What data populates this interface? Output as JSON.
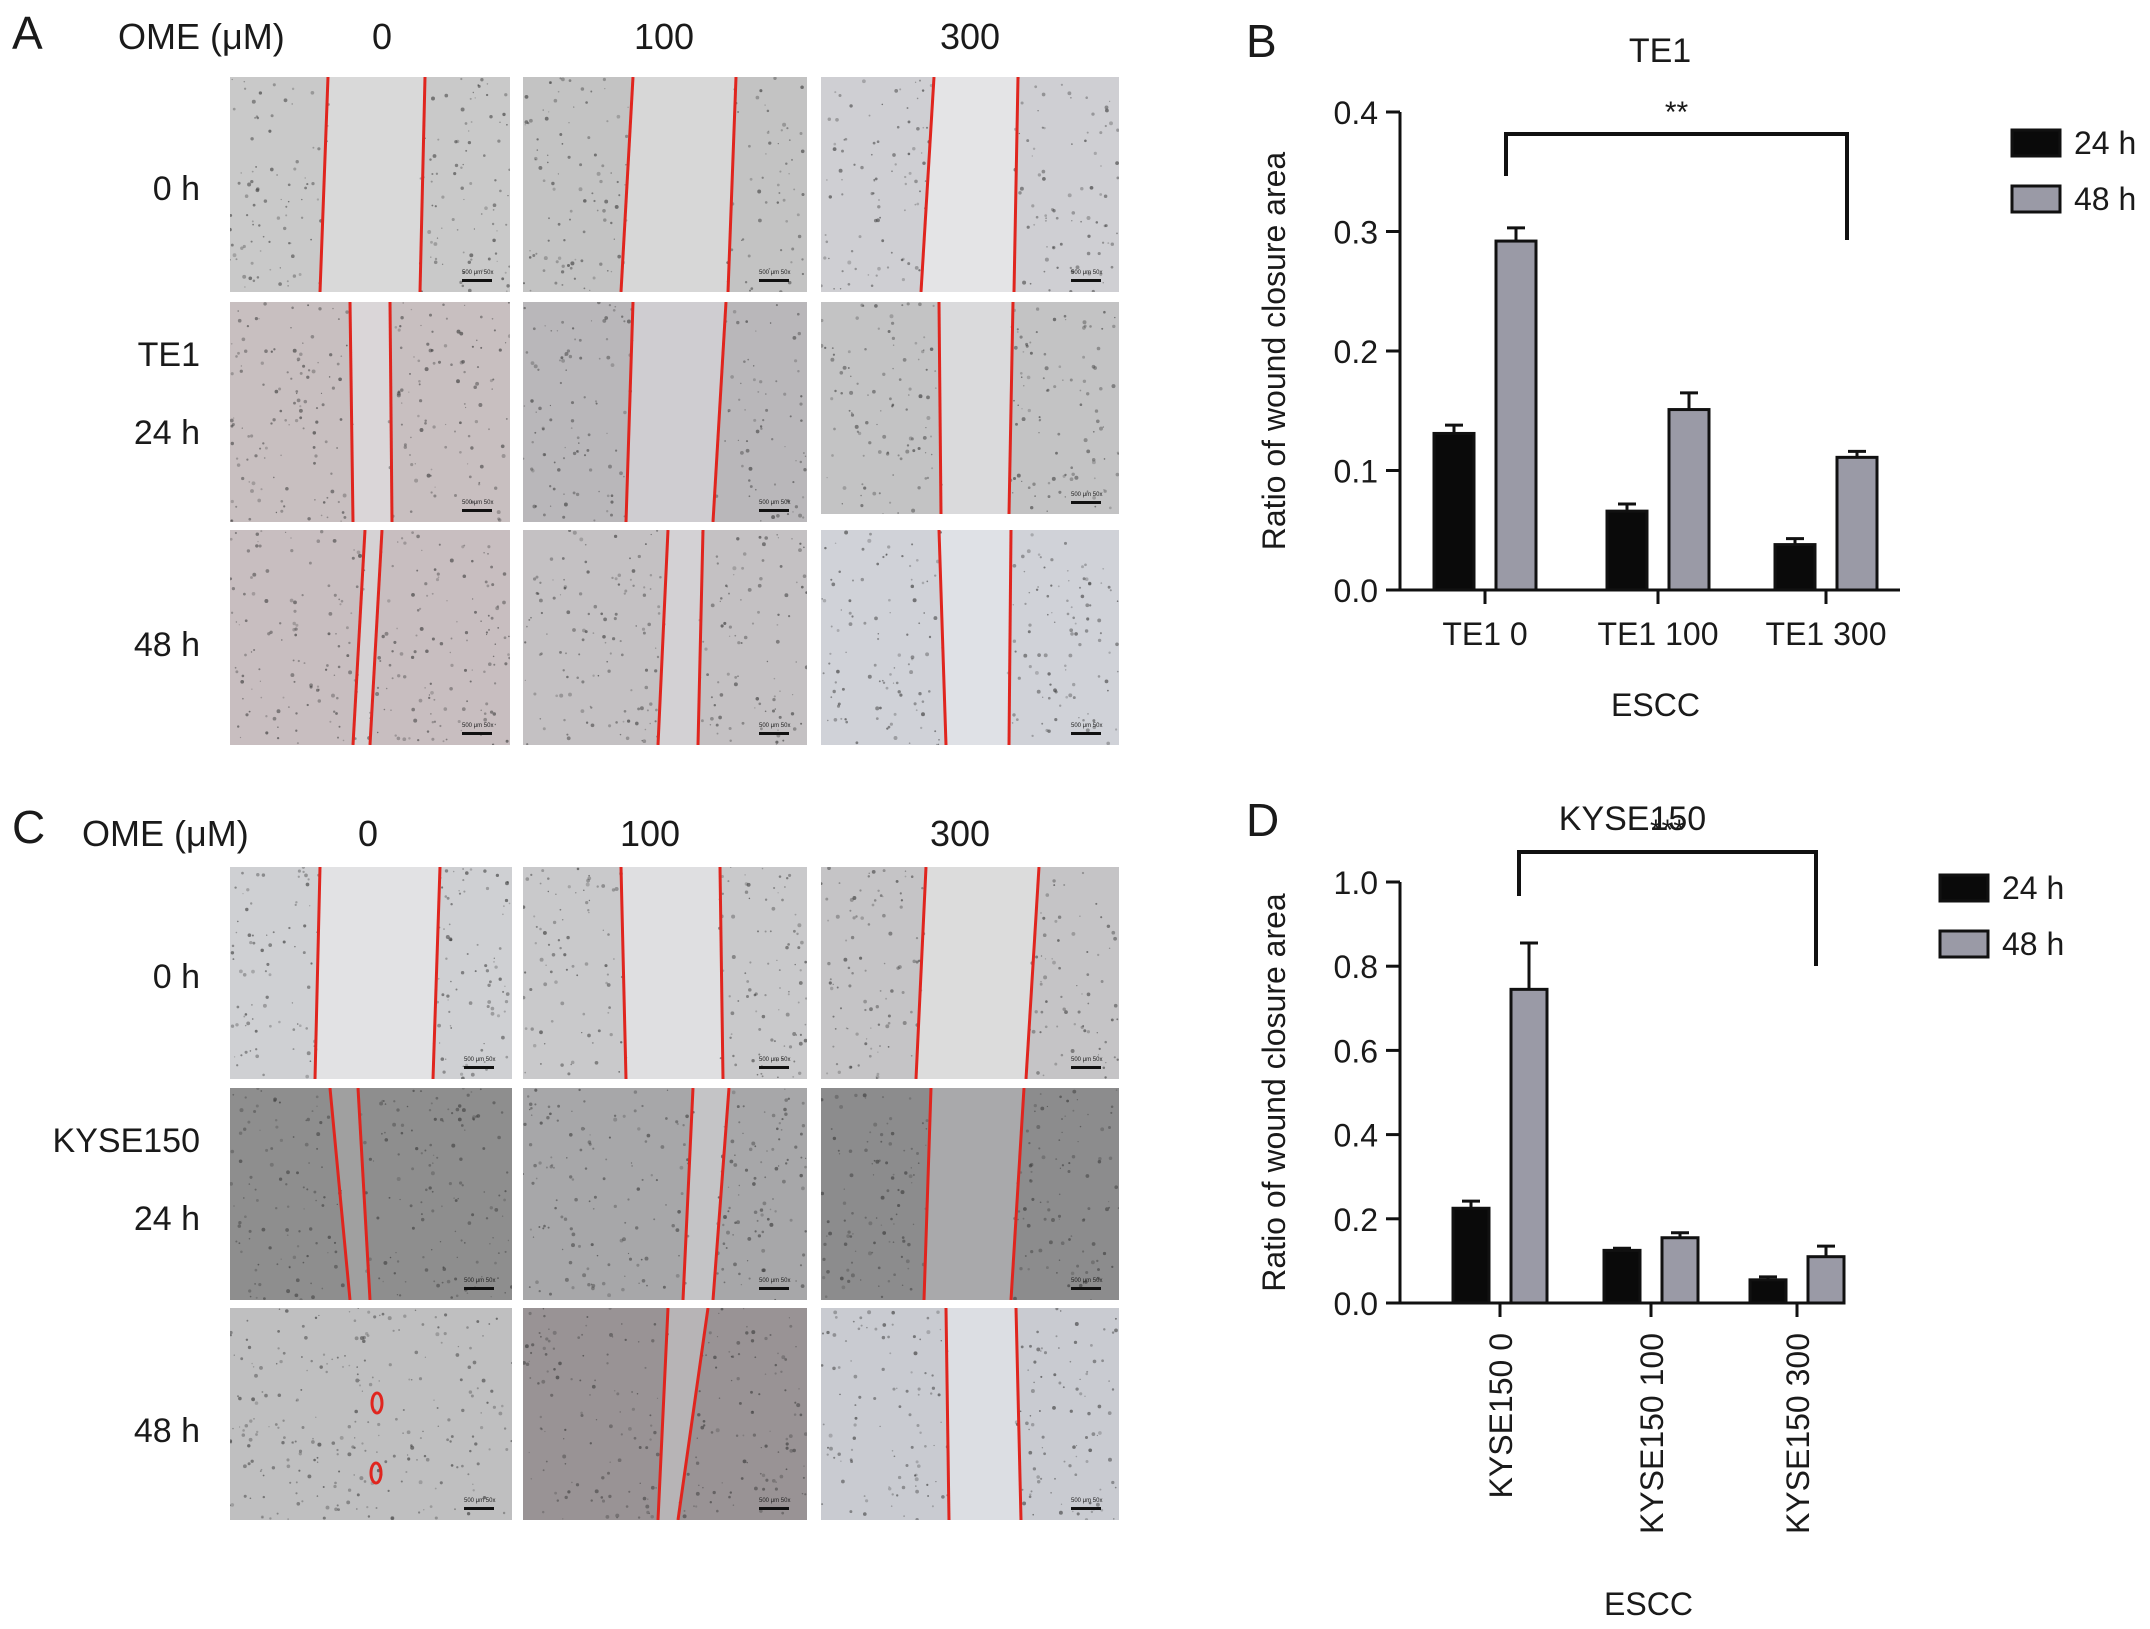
{
  "panels": {
    "A": {
      "letter": "A",
      "concentration_label": "OME (μM)",
      "columns": [
        "0",
        "100",
        "300"
      ],
      "cell_line": "TE1",
      "rows": [
        "0 h",
        "24 h",
        "48 h"
      ]
    },
    "C": {
      "letter": "C",
      "concentration_label": "OME (μM)",
      "columns": [
        "0",
        "100",
        "300"
      ],
      "cell_line": "KYSE150",
      "rows": [
        "0 h",
        "24 h",
        "48 h"
      ]
    }
  },
  "scale_bar": {
    "top": "500 μm",
    "bottom": "50x"
  },
  "colors": {
    "h24": "#0a0a0a",
    "h48": "#9a9aa6",
    "wound_line": "#e0251e"
  },
  "chart_data": [
    {
      "panel": "B",
      "type": "bar",
      "title": "TE1",
      "xlabel": "ESCC",
      "ylabel": "Ratio of wound closure area",
      "ylim": [
        0,
        0.4
      ],
      "yticks": [
        "0.0",
        "0.1",
        "0.2",
        "0.3",
        "0.4"
      ],
      "categories": [
        "TE1 0",
        "TE1 100",
        "TE1 300"
      ],
      "series": [
        {
          "name": "24 h",
          "values": [
            0.131,
            0.066,
            0.038
          ],
          "errors": [
            0.007,
            0.006,
            0.005
          ]
        },
        {
          "name": "48 h",
          "values": [
            0.292,
            0.151,
            0.111
          ],
          "errors": [
            0.011,
            0.014,
            0.005
          ]
        }
      ],
      "significance": {
        "label": "**",
        "from": "TE1 0",
        "to": "TE1 300"
      },
      "legend": "top-right"
    },
    {
      "panel": "D",
      "type": "bar",
      "title": "KYSE150",
      "xlabel": "ESCC",
      "ylabel": "Ratio of wound closure area",
      "ylim": [
        0,
        1.0
      ],
      "yticks": [
        "0.0",
        "0.2",
        "0.4",
        "0.6",
        "0.8",
        "1.0"
      ],
      "categories": [
        "KYSE150 0",
        "KYSE150 100",
        "KYSE150 300"
      ],
      "series": [
        {
          "name": "24 h",
          "values": [
            0.225,
            0.125,
            0.055
          ],
          "errors": [
            0.017,
            0.005,
            0.007
          ]
        },
        {
          "name": "48 h",
          "values": [
            0.745,
            0.155,
            0.11
          ],
          "errors": [
            0.11,
            0.012,
            0.025
          ]
        }
      ],
      "significance": {
        "label": "***",
        "from": "KYSE150 0",
        "to": "KYSE150 300"
      },
      "legend": "top-right"
    }
  ]
}
